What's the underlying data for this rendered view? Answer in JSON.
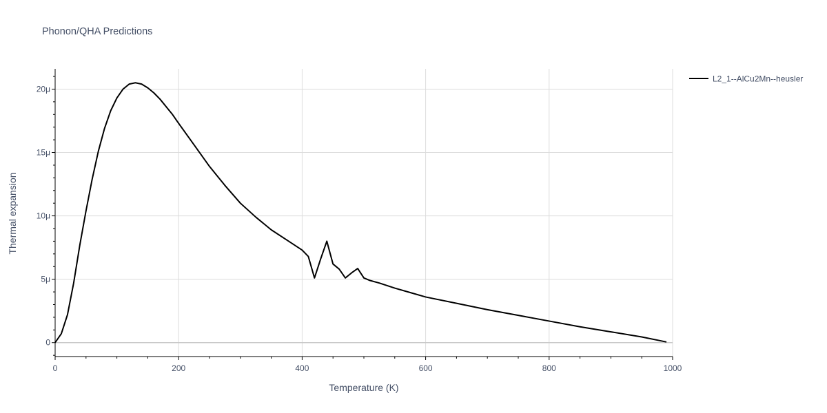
{
  "chart_data": {
    "type": "line",
    "title": "Phonon/QHA Predictions",
    "xlabel": "Temperature (K)",
    "ylabel": "Thermal expansion",
    "xlim": [
      0,
      1000
    ],
    "ylim": [
      -1.1,
      21.6
    ],
    "x_ticks": [
      0,
      200,
      400,
      600,
      800,
      1000
    ],
    "x_tick_labels": [
      "0",
      "200",
      "400",
      "600",
      "800",
      "1000"
    ],
    "y_ticks": [
      0,
      5,
      10,
      15,
      20
    ],
    "y_tick_labels": [
      "0",
      "5μ",
      "10μ",
      "15μ",
      "20μ"
    ],
    "y_unit_multiplier": "1e-6",
    "grid": true,
    "legend_position": "top-right",
    "series": [
      {
        "name": "L2_1--AlCu2Mn--heusler",
        "color": "#000000",
        "x": [
          0,
          10,
          20,
          30,
          40,
          50,
          60,
          70,
          80,
          90,
          100,
          110,
          120,
          130,
          140,
          150,
          160,
          170,
          180,
          190,
          200,
          225,
          250,
          275,
          300,
          325,
          350,
          375,
          400,
          410,
          420,
          430,
          440,
          450,
          460,
          470,
          480,
          490,
          500,
          510,
          525,
          550,
          575,
          600,
          650,
          700,
          750,
          800,
          850,
          900,
          950,
          990
        ],
        "y": [
          0,
          0.7,
          2.2,
          4.7,
          7.7,
          10.4,
          12.9,
          15.1,
          16.9,
          18.3,
          19.3,
          20.0,
          20.4,
          20.5,
          20.4,
          20.1,
          19.7,
          19.2,
          18.6,
          18.0,
          17.3,
          15.6,
          13.9,
          12.4,
          11.0,
          9.9,
          8.9,
          8.1,
          7.3,
          6.8,
          5.1,
          6.6,
          8.0,
          6.2,
          5.8,
          5.1,
          5.5,
          5.85,
          5.1,
          4.9,
          4.7,
          4.3,
          3.95,
          3.6,
          3.1,
          2.6,
          2.15,
          1.7,
          1.25,
          0.85,
          0.45,
          0.05
        ]
      }
    ]
  }
}
